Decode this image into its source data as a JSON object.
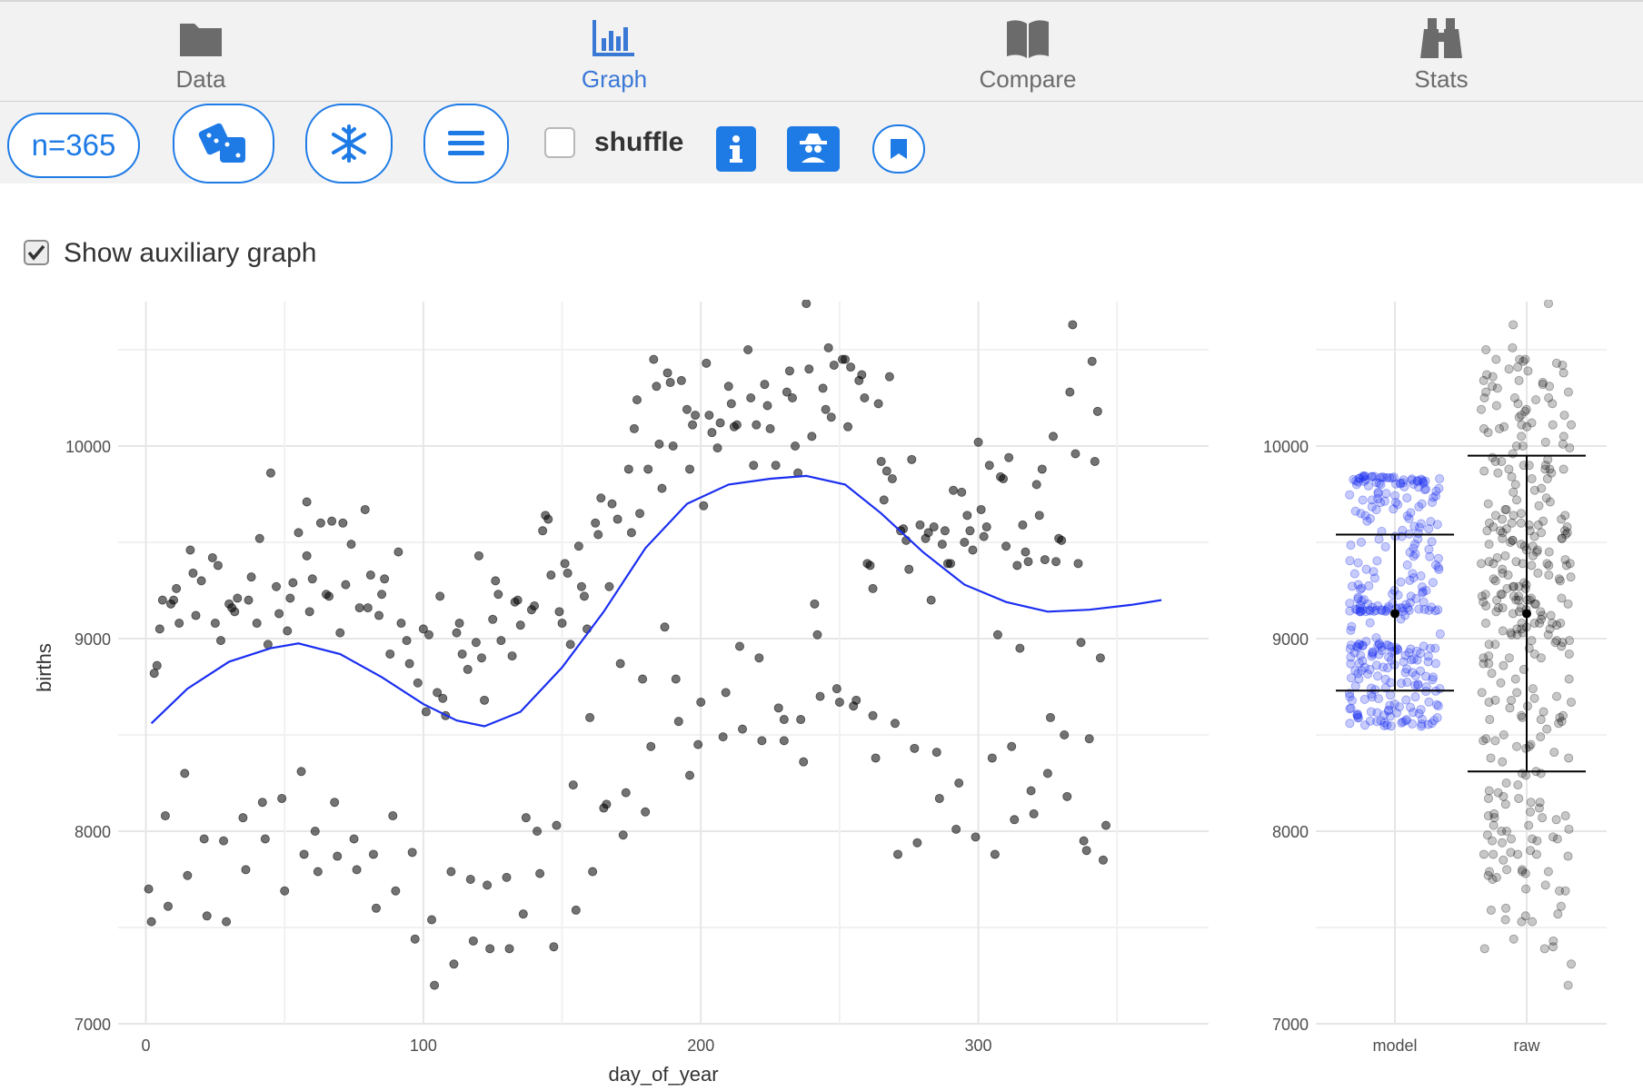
{
  "nav": {
    "tabs": [
      {
        "label": "Data",
        "icon": "folder-icon",
        "active": false
      },
      {
        "label": "Graph",
        "icon": "bar-chart-icon",
        "active": true
      },
      {
        "label": "Compare",
        "icon": "book-icon",
        "active": false
      },
      {
        "label": "Stats",
        "icon": "binoculars-icon",
        "active": false
      }
    ],
    "active_color": "#3a78d6",
    "inactive_color": "#6b6b6b"
  },
  "toolbar": {
    "n_label": "n=365",
    "shuffle_label": "shuffle",
    "shuffle_checked": false,
    "icons": [
      "dice-icon",
      "snowflake-icon",
      "menu-icon",
      "info-icon",
      "spy-icon",
      "bookmark-icon"
    ],
    "accent": "#1e7be6"
  },
  "aux": {
    "label": "Show auxiliary graph",
    "checked": true
  },
  "chart_data": [
    {
      "type": "scatter",
      "xlabel": "day_of_year",
      "ylabel": "births",
      "xlim": [
        -10,
        383
      ],
      "ylim": [
        7000,
        10750
      ],
      "xticks": [
        0,
        100,
        200,
        300
      ],
      "yticks": [
        7000,
        8000,
        9000,
        10000
      ],
      "grid": true,
      "point_color": "#000000",
      "line_color": "#1a2ef0",
      "points": [
        [
          1,
          7700
        ],
        [
          2,
          7530
        ],
        [
          3,
          8820
        ],
        [
          4,
          8860
        ],
        [
          5,
          9050
        ],
        [
          6,
          9200
        ],
        [
          7,
          8080
        ],
        [
          8,
          7610
        ],
        [
          9,
          9180
        ],
        [
          10,
          9200
        ],
        [
          11,
          9260
        ],
        [
          12,
          9080
        ],
        [
          14,
          8300
        ],
        [
          15,
          7770
        ],
        [
          16,
          9460
        ],
        [
          17,
          9340
        ],
        [
          18,
          9120
        ],
        [
          20,
          9300
        ],
        [
          21,
          7960
        ],
        [
          22,
          7560
        ],
        [
          24,
          9420
        ],
        [
          25,
          9080
        ],
        [
          26,
          9380
        ],
        [
          27,
          8990
        ],
        [
          28,
          7950
        ],
        [
          29,
          7530
        ],
        [
          30,
          9180
        ],
        [
          31,
          9160
        ],
        [
          32,
          9140
        ],
        [
          33,
          9210
        ],
        [
          35,
          8070
        ],
        [
          36,
          7800
        ],
        [
          37,
          9200
        ],
        [
          38,
          9320
        ],
        [
          40,
          9080
        ],
        [
          41,
          9520
        ],
        [
          42,
          8150
        ],
        [
          43,
          7960
        ],
        [
          44,
          8970
        ],
        [
          45,
          9860
        ],
        [
          47,
          9270
        ],
        [
          48,
          9130
        ],
        [
          49,
          8170
        ],
        [
          50,
          7690
        ],
        [
          51,
          9040
        ],
        [
          52,
          9210
        ],
        [
          53,
          9290
        ],
        [
          55,
          9550
        ],
        [
          56,
          8310
        ],
        [
          57,
          7880
        ],
        [
          58,
          9710
        ],
        [
          59,
          9140
        ],
        [
          60,
          9310
        ],
        [
          61,
          8000
        ],
        [
          62,
          7790
        ],
        [
          63,
          9600
        ],
        [
          65,
          9230
        ],
        [
          66,
          9220
        ],
        [
          67,
          9610
        ],
        [
          68,
          8150
        ],
        [
          69,
          7870
        ],
        [
          70,
          9030
        ],
        [
          71,
          9600
        ],
        [
          72,
          9280
        ],
        [
          74,
          9490
        ],
        [
          75,
          7960
        ],
        [
          76,
          7800
        ],
        [
          77,
          9160
        ],
        [
          79,
          9670
        ],
        [
          80,
          9160
        ],
        [
          81,
          9330
        ],
        [
          82,
          7880
        ],
        [
          83,
          7600
        ],
        [
          84,
          9120
        ],
        [
          86,
          9310
        ],
        [
          88,
          8920
        ],
        [
          89,
          8080
        ],
        [
          90,
          7690
        ],
        [
          91,
          9450
        ],
        [
          92,
          9080
        ],
        [
          94,
          8990
        ],
        [
          95,
          8870
        ],
        [
          96,
          7890
        ],
        [
          97,
          7440
        ],
        [
          98,
          8770
        ],
        [
          100,
          9050
        ],
        [
          101,
          8620
        ],
        [
          102,
          9020
        ],
        [
          103,
          7540
        ],
        [
          104,
          7200
        ],
        [
          105,
          8720
        ],
        [
          106,
          9220
        ],
        [
          107,
          8690
        ],
        [
          108,
          8600
        ],
        [
          110,
          7790
        ],
        [
          111,
          7310
        ],
        [
          112,
          9030
        ],
        [
          113,
          9080
        ],
        [
          114,
          8920
        ],
        [
          116,
          8840
        ],
        [
          117,
          7750
        ],
        [
          118,
          7430
        ],
        [
          119,
          8980
        ],
        [
          120,
          9430
        ],
        [
          121,
          8900
        ],
        [
          122,
          8680
        ],
        [
          123,
          7720
        ],
        [
          124,
          7390
        ],
        [
          125,
          9100
        ],
        [
          126,
          9300
        ],
        [
          127,
          9230
        ],
        [
          128,
          8990
        ],
        [
          130,
          7760
        ],
        [
          131,
          7390
        ],
        [
          132,
          8910
        ],
        [
          133,
          9190
        ],
        [
          134,
          9200
        ],
        [
          135,
          9070
        ],
        [
          136,
          7570
        ],
        [
          137,
          8070
        ],
        [
          139,
          9150
        ],
        [
          140,
          9170
        ],
        [
          141,
          8000
        ],
        [
          142,
          7780
        ],
        [
          143,
          9560
        ],
        [
          144,
          9640
        ],
        [
          145,
          9620
        ],
        [
          146,
          9330
        ],
        [
          147,
          7400
        ],
        [
          148,
          8030
        ],
        [
          149,
          9140
        ],
        [
          151,
          9390
        ],
        [
          152,
          9340
        ],
        [
          153,
          8970
        ],
        [
          154,
          8240
        ],
        [
          155,
          7590
        ],
        [
          156,
          9480
        ],
        [
          157,
          9270
        ],
        [
          158,
          9220
        ],
        [
          159,
          9050
        ],
        [
          160,
          8590
        ],
        [
          161,
          7790
        ],
        [
          162,
          9600
        ],
        [
          163,
          9540
        ],
        [
          164,
          9730
        ],
        [
          165,
          8120
        ],
        [
          166,
          8140
        ],
        [
          167,
          9270
        ],
        [
          168,
          9700
        ],
        [
          170,
          9620
        ],
        [
          171,
          8870
        ],
        [
          172,
          7980
        ],
        [
          173,
          8200
        ],
        [
          174,
          9880
        ],
        [
          176,
          10090
        ],
        [
          177,
          10240
        ],
        [
          178,
          9650
        ],
        [
          179,
          8790
        ],
        [
          180,
          8100
        ],
        [
          181,
          9880
        ],
        [
          182,
          8440
        ],
        [
          183,
          10450
        ],
        [
          184,
          10310
        ],
        [
          185,
          10010
        ],
        [
          186,
          9780
        ],
        [
          187,
          9060
        ],
        [
          188,
          10380
        ],
        [
          189,
          10330
        ],
        [
          190,
          10000
        ],
        [
          191,
          8790
        ],
        [
          192,
          8570
        ],
        [
          193,
          10340
        ],
        [
          195,
          10190
        ],
        [
          196,
          9880
        ],
        [
          197,
          10110
        ],
        [
          198,
          10160
        ],
        [
          199,
          8450
        ],
        [
          200,
          8670
        ],
        [
          201,
          9690
        ],
        [
          202,
          10430
        ],
        [
          203,
          10160
        ],
        [
          204,
          10070
        ],
        [
          206,
          9990
        ],
        [
          207,
          10120
        ],
        [
          208,
          8490
        ],
        [
          209,
          8720
        ],
        [
          210,
          10310
        ],
        [
          211,
          10220
        ],
        [
          212,
          10100
        ],
        [
          213,
          10110
        ],
        [
          214,
          8960
        ],
        [
          215,
          8530
        ],
        [
          217,
          10500
        ],
        [
          218,
          10250
        ],
        [
          219,
          9900
        ],
        [
          220,
          10110
        ],
        [
          221,
          8900
        ],
        [
          222,
          8470
        ],
        [
          223,
          10320
        ],
        [
          224,
          10210
        ],
        [
          225,
          10090
        ],
        [
          227,
          9900
        ],
        [
          228,
          8640
        ],
        [
          230,
          8470
        ],
        [
          231,
          10280
        ],
        [
          232,
          10390
        ],
        [
          233,
          10250
        ],
        [
          234,
          10000
        ],
        [
          235,
          9860
        ],
        [
          236,
          8580
        ],
        [
          237,
          8360
        ],
        [
          238,
          10740
        ],
        [
          239,
          10400
        ],
        [
          240,
          10050
        ],
        [
          241,
          9180
        ],
        [
          242,
          9020
        ],
        [
          243,
          8700
        ],
        [
          244,
          10300
        ],
        [
          246,
          10510
        ],
        [
          247,
          10150
        ],
        [
          248,
          10420
        ],
        [
          249,
          8740
        ],
        [
          250,
          8670
        ],
        [
          251,
          10450
        ],
        [
          252,
          10450
        ],
        [
          253,
          10100
        ],
        [
          254,
          10410
        ],
        [
          255,
          8650
        ],
        [
          256,
          8680
        ],
        [
          257,
          10340
        ],
        [
          258,
          10370
        ],
        [
          259,
          10250
        ],
        [
          260,
          9390
        ],
        [
          261,
          9380
        ],
        [
          262,
          8600
        ],
        [
          263,
          8380
        ],
        [
          264,
          10220
        ],
        [
          265,
          9920
        ],
        [
          266,
          9720
        ],
        [
          267,
          9870
        ],
        [
          268,
          10360
        ],
        [
          269,
          9830
        ],
        [
          270,
          8560
        ],
        [
          271,
          7880
        ],
        [
          272,
          9560
        ],
        [
          273,
          9570
        ],
        [
          274,
          9510
        ],
        [
          275,
          9360
        ],
        [
          276,
          9930
        ],
        [
          277,
          8430
        ],
        [
          278,
          7940
        ],
        [
          279,
          9590
        ],
        [
          281,
          9520
        ],
        [
          282,
          9550
        ],
        [
          283,
          9200
        ],
        [
          284,
          9580
        ],
        [
          285,
          8410
        ],
        [
          286,
          8170
        ],
        [
          287,
          9490
        ],
        [
          288,
          9560
        ],
        [
          289,
          9390
        ],
        [
          290,
          9390
        ],
        [
          291,
          9770
        ],
        [
          292,
          8010
        ],
        [
          293,
          8250
        ],
        [
          294,
          9760
        ],
        [
          295,
          9500
        ],
        [
          296,
          9640
        ],
        [
          297,
          9560
        ],
        [
          298,
          9460
        ],
        [
          299,
          7970
        ],
        [
          300,
          10020
        ],
        [
          301,
          9670
        ],
        [
          302,
          9530
        ],
        [
          303,
          9580
        ],
        [
          304,
          9900
        ],
        [
          305,
          8380
        ],
        [
          306,
          7880
        ],
        [
          307,
          9020
        ],
        [
          308,
          9840
        ],
        [
          309,
          9830
        ],
        [
          310,
          9480
        ],
        [
          311,
          9940
        ],
        [
          312,
          8440
        ],
        [
          313,
          8060
        ],
        [
          314,
          9380
        ],
        [
          315,
          8950
        ],
        [
          316,
          9590
        ],
        [
          317,
          9450
        ],
        [
          318,
          9400
        ],
        [
          319,
          8210
        ],
        [
          320,
          8090
        ],
        [
          321,
          9800
        ],
        [
          322,
          9640
        ],
        [
          323,
          9880
        ],
        [
          324,
          9410
        ],
        [
          325,
          8300
        ],
        [
          326,
          8590
        ],
        [
          327,
          10050
        ],
        [
          328,
          9400
        ],
        [
          329,
          9520
        ],
        [
          330,
          9510
        ],
        [
          331,
          8500
        ],
        [
          332,
          8180
        ],
        [
          333,
          10280
        ],
        [
          334,
          10630
        ],
        [
          335,
          9960
        ],
        [
          336,
          9390
        ],
        [
          337,
          8980
        ],
        [
          338,
          7950
        ],
        [
          339,
          7900
        ],
        [
          340,
          8480
        ],
        [
          341,
          10440
        ],
        [
          342,
          9920
        ],
        [
          343,
          10180
        ],
        [
          344,
          8900
        ],
        [
          345,
          7850
        ],
        [
          346,
          8030
        ],
        [
          58,
          9430
        ],
        [
          85,
          9230
        ],
        [
          150,
          9080
        ],
        [
          175,
          9550
        ],
        [
          196,
          8290
        ],
        [
          230,
          8580
        ],
        [
          245,
          10190
        ],
        [
          262,
          9260
        ]
      ],
      "curve": [
        [
          2,
          8560
        ],
        [
          15,
          8740
        ],
        [
          30,
          8880
        ],
        [
          45,
          8950
        ],
        [
          55,
          8975
        ],
        [
          70,
          8920
        ],
        [
          85,
          8800
        ],
        [
          100,
          8660
        ],
        [
          112,
          8575
        ],
        [
          122,
          8545
        ],
        [
          135,
          8620
        ],
        [
          150,
          8850
        ],
        [
          165,
          9140
        ],
        [
          180,
          9470
        ],
        [
          195,
          9700
        ],
        [
          210,
          9800
        ],
        [
          225,
          9830
        ],
        [
          238,
          9845
        ],
        [
          252,
          9800
        ],
        [
          265,
          9650
        ],
        [
          280,
          9450
        ],
        [
          295,
          9280
        ],
        [
          310,
          9190
        ],
        [
          325,
          9140
        ],
        [
          340,
          9150
        ],
        [
          355,
          9175
        ],
        [
          366,
          9200
        ]
      ]
    },
    {
      "type": "scatter",
      "categories": [
        "model",
        "raw"
      ],
      "ylim": [
        7000,
        10750
      ],
      "yticks": [
        7000,
        8000,
        9000,
        10000
      ],
      "model_color": "#1a2ef0",
      "raw_color": "#000000",
      "intervals": [
        {
          "category": "model",
          "mean": 9130,
          "low": 8730,
          "high": 9540
        },
        {
          "category": "raw",
          "mean": 9130,
          "low": 8310,
          "high": 9950
        }
      ]
    }
  ]
}
